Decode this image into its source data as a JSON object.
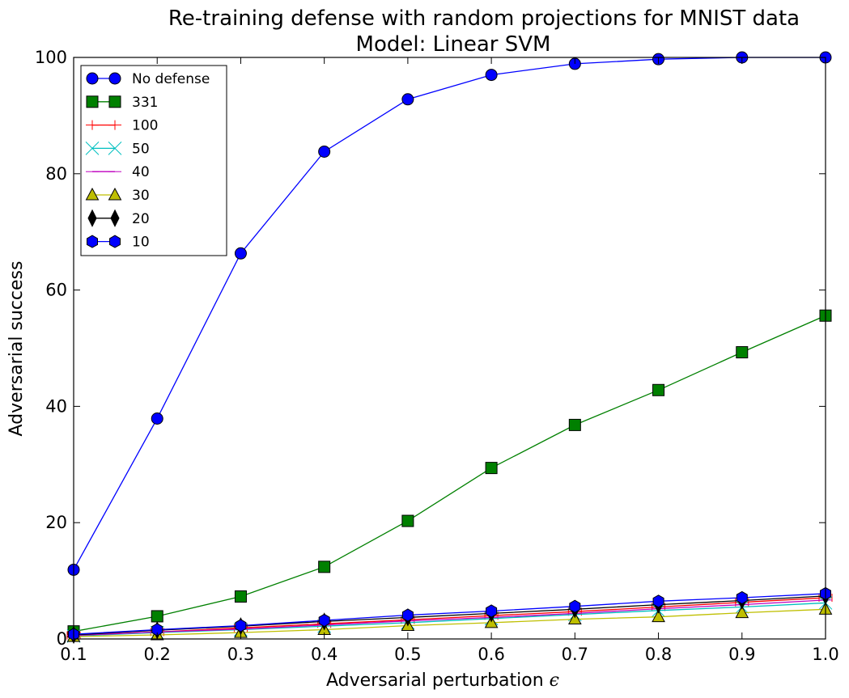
{
  "chart_data": {
    "type": "line",
    "title": "Re-training defense with random projections for MNIST data",
    "subtitle": "Model: Linear SVM",
    "xlabel": "Adversarial perturbation",
    "xlabel_symbol": "ϵ",
    "ylabel": "Adversarial success",
    "xlim": [
      0.1,
      1.0
    ],
    "ylim": [
      0,
      100
    ],
    "x_ticks": [
      "0.1",
      "0.2",
      "0.3",
      "0.4",
      "0.5",
      "0.6",
      "0.7",
      "0.8",
      "0.9",
      "1.0"
    ],
    "y_ticks": [
      "0",
      "20",
      "40",
      "60",
      "80",
      "100"
    ],
    "grid": false,
    "legend_position": "top-left",
    "x": [
      0.1,
      0.2,
      0.3,
      0.4,
      0.5,
      0.6,
      0.7,
      0.8,
      0.9,
      1.0
    ],
    "series": [
      {
        "name": "No defense",
        "color": "#0000ff",
        "marker": "circle",
        "values": [
          11.9,
          37.9,
          66.3,
          83.8,
          92.8,
          97.0,
          98.9,
          99.7,
          100.0,
          100.0
        ]
      },
      {
        "name": "331",
        "color": "#008000",
        "marker": "square",
        "values": [
          1.3,
          3.9,
          7.3,
          12.4,
          20.3,
          29.4,
          36.8,
          42.8,
          49.3,
          55.6
        ]
      },
      {
        "name": "100",
        "color": "#ff0000",
        "marker": "hline",
        "values": [
          0.6,
          1.2,
          1.9,
          2.6,
          3.3,
          4.0,
          4.7,
          5.5,
          6.3,
          7.1
        ]
      },
      {
        "name": "50",
        "color": "#00bfbf",
        "marker": "x",
        "values": [
          0.5,
          1.1,
          1.6,
          2.2,
          2.8,
          3.5,
          4.2,
          4.9,
          5.5,
          6.2
        ]
      },
      {
        "name": "40",
        "color": "#bf00bf",
        "marker": "hline",
        "values": [
          0.6,
          1.2,
          1.7,
          2.4,
          3.1,
          3.7,
          4.4,
          5.2,
          5.9,
          6.7
        ]
      },
      {
        "name": "30",
        "color": "#bfbf00",
        "marker": "triangle",
        "values": [
          0.4,
          0.7,
          1.1,
          1.6,
          2.3,
          2.8,
          3.4,
          3.8,
          4.5,
          5.1
        ]
      },
      {
        "name": "20",
        "color": "#000000",
        "marker": "diamond",
        "values": [
          0.7,
          1.5,
          2.2,
          3.0,
          3.7,
          4.4,
          5.1,
          5.9,
          6.6,
          7.4
        ]
      },
      {
        "name": "10",
        "color": "#0000ff",
        "marker": "hexagon",
        "values": [
          0.8,
          1.6,
          2.3,
          3.2,
          4.1,
          4.8,
          5.6,
          6.5,
          7.1,
          7.8
        ]
      }
    ]
  }
}
